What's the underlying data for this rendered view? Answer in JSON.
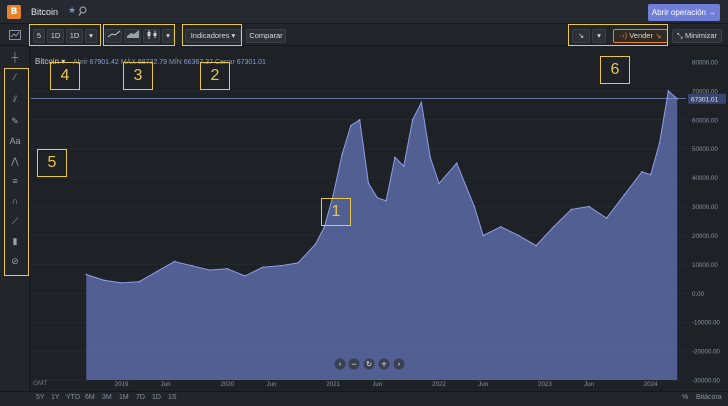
{
  "app": {
    "title": "Bitcoin",
    "open_operation": "Abrir operación →"
  },
  "toolbar": {
    "interval_a": "5",
    "interval_b": "1D",
    "interval_c": "1D",
    "indicators": "Indicadores ▾",
    "compare": "Comparar",
    "sell_label": "Vender",
    "minimize": "Minimizar"
  },
  "legend": {
    "name": "Bitcoin ▾",
    "open_label": "Abrir",
    "open": "67901.42",
    "max_label": "MÁX",
    "max": "68732.79",
    "min_label": "MÍN",
    "min": "66367.37",
    "close_label": "Cerrar",
    "close": "67301.01"
  },
  "callouts": [
    "1",
    "2",
    "3",
    "4",
    "5",
    "6"
  ],
  "bottom": {
    "gmt": "GMT",
    "ranges": [
      "5Y",
      "1Y",
      "YTD",
      "6M",
      "3M",
      "1M",
      "7D",
      "1D",
      "1S"
    ],
    "percent": "%",
    "log": "Bitácora"
  },
  "chart_data": {
    "type": "area",
    "x": [
      "2018-09",
      "2018-11",
      "2019-01",
      "2019-03",
      "2019-05",
      "2019-07",
      "2019-09",
      "2019-11",
      "2020-01",
      "2020-03",
      "2020-05",
      "2020-07",
      "2020-09",
      "2020-11",
      "2020-12",
      "2021-01",
      "2021-02",
      "2021-03",
      "2021-04",
      "2021-05",
      "2021-06",
      "2021-07",
      "2021-08",
      "2021-09",
      "2021-10",
      "2021-11",
      "2021-12",
      "2022-01",
      "2022-03",
      "2022-05",
      "2022-06",
      "2022-08",
      "2022-10",
      "2022-12",
      "2023-02",
      "2023-04",
      "2023-06",
      "2023-08",
      "2023-10",
      "2023-12",
      "2024-01",
      "2024-02",
      "2024-03",
      "2024-04"
    ],
    "values": [
      6500,
      4500,
      3600,
      4000,
      7500,
      11000,
      9500,
      8000,
      8500,
      6000,
      9000,
      9500,
      10500,
      17000,
      23000,
      34000,
      48000,
      58000,
      60000,
      38000,
      33000,
      32000,
      47000,
      44000,
      60000,
      66000,
      47000,
      38000,
      45000,
      30000,
      20000,
      23000,
      20000,
      16500,
      23000,
      29000,
      30000,
      26000,
      34000,
      42000,
      41000,
      52000,
      70000,
      67301
    ],
    "ylim": [
      -30000,
      80000
    ],
    "yticks": [
      "80000.00",
      "70000.00",
      "60000.00",
      "50000.00",
      "40000.00",
      "30000.00",
      "20000.00",
      "10000.00",
      "0.00",
      "-10000.00",
      "-20000.00",
      "-30000.00"
    ],
    "xticks": [
      "2019",
      "Jun",
      "2020",
      "Jun",
      "2021",
      "Jun",
      "2022",
      "Jun",
      "2023",
      "Jun",
      "2024"
    ],
    "last_value": "67301.01",
    "colors": {
      "fill": "#5b6aa6",
      "line": "#8f9fe6",
      "price_line": "#8f9fe6"
    }
  }
}
